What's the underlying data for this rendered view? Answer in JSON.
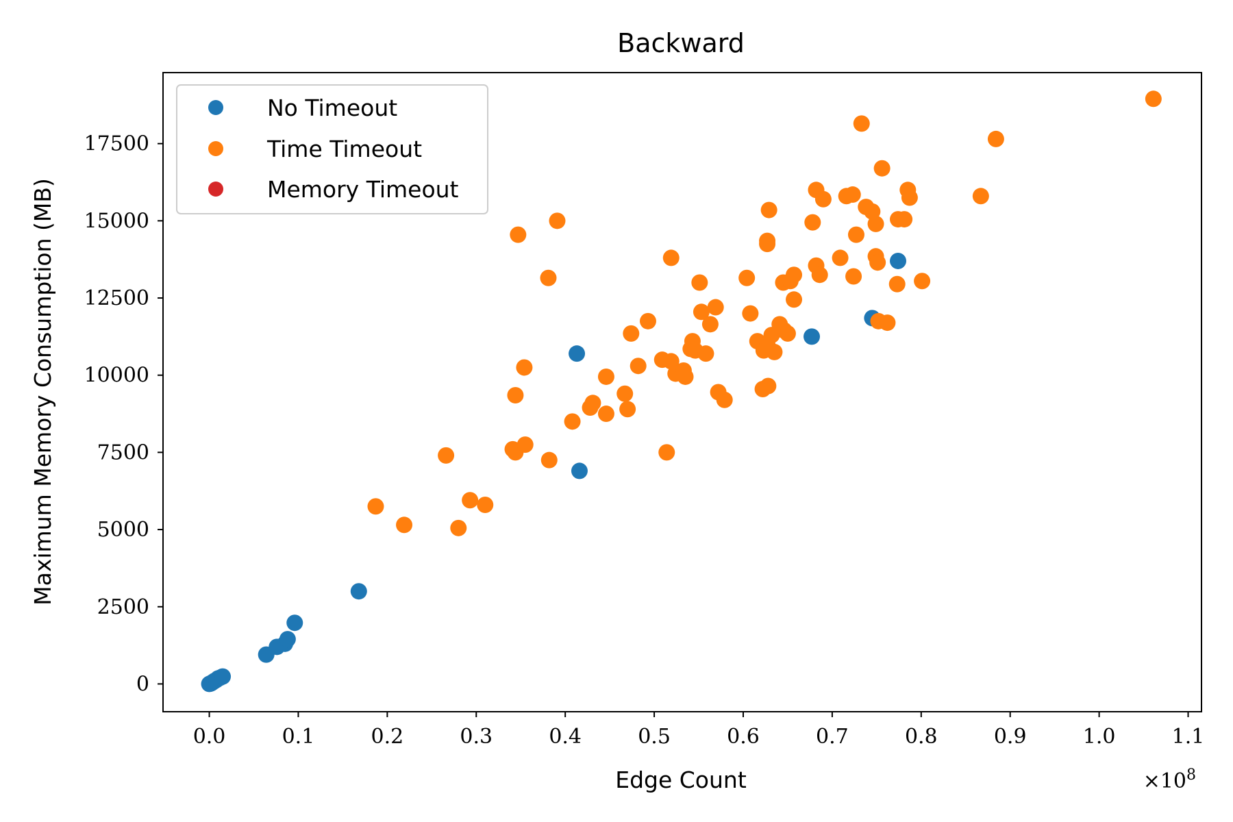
{
  "chart_data": {
    "type": "scatter",
    "title": "Backward",
    "xlabel": "Edge Count",
    "ylabel": "Maximum Memory Consumption (MB)",
    "x_offset_label": "×10",
    "x_offset_exponent": "8",
    "xlim": [
      -0.052,
      1.115
    ],
    "ylim": [
      -900,
      19800
    ],
    "xticks": [
      0.0,
      0.1,
      0.2,
      0.3,
      0.4,
      0.5,
      0.6,
      0.7,
      0.8,
      0.9,
      1.0,
      1.1
    ],
    "xtick_labels": [
      "0.0",
      "0.1",
      "0.2",
      "0.3",
      "0.4",
      "0.5",
      "0.6",
      "0.7",
      "0.8",
      "0.9",
      "1.0",
      "1.1"
    ],
    "yticks": [
      0,
      2500,
      5000,
      7500,
      10000,
      12500,
      15000,
      17500
    ],
    "ytick_labels": [
      "0",
      "2500",
      "5000",
      "7500",
      "10000",
      "12500",
      "15000",
      "17500"
    ],
    "grid": false,
    "legend_position": "top-left",
    "series": [
      {
        "name": "No Timeout",
        "color": "#1f77b4",
        "points": [
          [
            0.0,
            0
          ],
          [
            0.001,
            10
          ],
          [
            0.002,
            20
          ],
          [
            0.003,
            40
          ],
          [
            0.005,
            80
          ],
          [
            0.006,
            100
          ],
          [
            0.008,
            130
          ],
          [
            0.01,
            180
          ],
          [
            0.012,
            200
          ],
          [
            0.015,
            240
          ],
          [
            0.064,
            950
          ],
          [
            0.076,
            1200
          ],
          [
            0.085,
            1300
          ],
          [
            0.088,
            1450
          ],
          [
            0.096,
            1980
          ],
          [
            0.168,
            3000
          ],
          [
            0.413,
            10700
          ],
          [
            0.416,
            6900
          ],
          [
            0.677,
            11250
          ],
          [
            0.745,
            11850
          ],
          [
            0.774,
            13700
          ]
        ]
      },
      {
        "name": "Time Timeout",
        "color": "#ff7f0e",
        "points": [
          [
            1.061,
            18950
          ],
          [
            0.884,
            17650
          ],
          [
            0.867,
            15800
          ],
          [
            0.733,
            18150
          ],
          [
            0.756,
            16700
          ],
          [
            0.785,
            16000
          ],
          [
            0.787,
            15750
          ],
          [
            0.682,
            16000
          ],
          [
            0.69,
            15700
          ],
          [
            0.716,
            15800
          ],
          [
            0.723,
            15850
          ],
          [
            0.738,
            15450
          ],
          [
            0.745,
            15300
          ],
          [
            0.749,
            14900
          ],
          [
            0.774,
            15050
          ],
          [
            0.781,
            15050
          ],
          [
            0.678,
            14950
          ],
          [
            0.727,
            14550
          ],
          [
            0.629,
            15350
          ],
          [
            0.627,
            14350
          ],
          [
            0.627,
            14250
          ],
          [
            0.682,
            13550
          ],
          [
            0.686,
            13250
          ],
          [
            0.709,
            13800
          ],
          [
            0.724,
            13200
          ],
          [
            0.749,
            13850
          ],
          [
            0.751,
            13650
          ],
          [
            0.773,
            12950
          ],
          [
            0.801,
            13050
          ],
          [
            0.604,
            13150
          ],
          [
            0.645,
            13000
          ],
          [
            0.653,
            13050
          ],
          [
            0.657,
            13250
          ],
          [
            0.657,
            12450
          ],
          [
            0.608,
            12000
          ],
          [
            0.641,
            11650
          ],
          [
            0.646,
            11450
          ],
          [
            0.65,
            11350
          ],
          [
            0.616,
            11100
          ],
          [
            0.623,
            10800
          ],
          [
            0.627,
            11000
          ],
          [
            0.632,
            11300
          ],
          [
            0.635,
            10750
          ],
          [
            0.622,
            9550
          ],
          [
            0.628,
            9650
          ],
          [
            0.752,
            11750
          ],
          [
            0.762,
            11700
          ],
          [
            0.519,
            13800
          ],
          [
            0.551,
            13000
          ],
          [
            0.553,
            12050
          ],
          [
            0.563,
            11650
          ],
          [
            0.569,
            12200
          ],
          [
            0.543,
            11100
          ],
          [
            0.541,
            10850
          ],
          [
            0.546,
            10800
          ],
          [
            0.558,
            10700
          ],
          [
            0.572,
            9450
          ],
          [
            0.579,
            9200
          ],
          [
            0.509,
            10500
          ],
          [
            0.519,
            10450
          ],
          [
            0.524,
            10050
          ],
          [
            0.533,
            10150
          ],
          [
            0.535,
            9950
          ],
          [
            0.514,
            7500
          ],
          [
            0.493,
            11750
          ],
          [
            0.474,
            11350
          ],
          [
            0.482,
            10300
          ],
          [
            0.446,
            9950
          ],
          [
            0.467,
            9400
          ],
          [
            0.47,
            8900
          ],
          [
            0.428,
            8950
          ],
          [
            0.431,
            9100
          ],
          [
            0.446,
            8750
          ],
          [
            0.408,
            8500
          ],
          [
            0.391,
            15000
          ],
          [
            0.347,
            14550
          ],
          [
            0.381,
            13150
          ],
          [
            0.354,
            10250
          ],
          [
            0.344,
            9350
          ],
          [
            0.341,
            7600
          ],
          [
            0.344,
            7500
          ],
          [
            0.355,
            7750
          ],
          [
            0.382,
            7250
          ],
          [
            0.266,
            7400
          ],
          [
            0.293,
            5950
          ],
          [
            0.31,
            5800
          ],
          [
            0.28,
            5050
          ],
          [
            0.187,
            5750
          ],
          [
            0.219,
            5150
          ]
        ]
      },
      {
        "name": "Memory Timeout",
        "color": "#d62728",
        "points": []
      }
    ]
  }
}
